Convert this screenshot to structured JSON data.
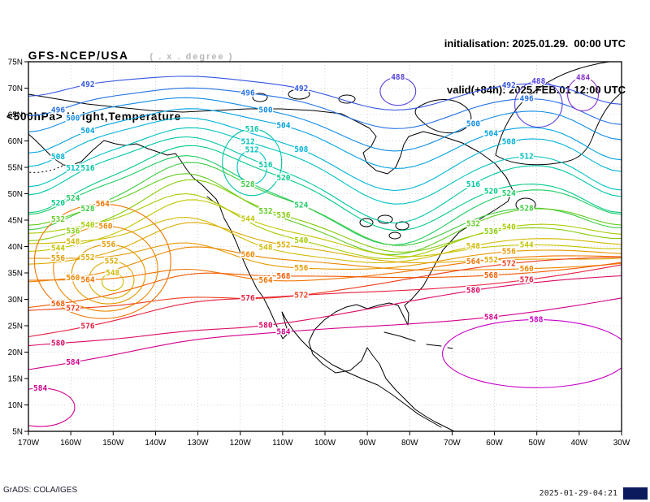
{
  "header": {
    "model": "GFS-NCEP/USA",
    "resolution_note": "( . x . degree )",
    "field_title": "<500hPa> Height,Temperature",
    "init_label": "initialisation: 2025.01.29.  00:00 UTC",
    "valid_label": "valid(+84h): 2025.FEB.01 12:00 UTC"
  },
  "footer": {
    "credit": "GrADS: COLA/IGES",
    "timestamp": "2025-01-29-04:21"
  },
  "axes": {
    "lat_ticks": [
      "75N",
      "70N",
      "65N",
      "60N",
      "55N",
      "50N",
      "45N",
      "40N",
      "35N",
      "30N",
      "25N",
      "20N",
      "15N",
      "10N",
      "5N"
    ],
    "lon_ticks": [
      "170W",
      "160W",
      "150W",
      "140W",
      "130W",
      "120W",
      "110W",
      "100W",
      "90W",
      "80W",
      "70W",
      "60W",
      "50W",
      "40W",
      "30W"
    ]
  },
  "chart_data": {
    "type": "contour",
    "title": "<500hPa> Height,Temperature",
    "model": "GFS-NCEP/USA",
    "initialisation": "2025.01.29. 00:00 UTC",
    "valid": "2025.FEB.01 12:00 UTC (+84h)",
    "lat_range": [
      "5N",
      "75N"
    ],
    "lon_range": [
      "170W",
      "30W"
    ],
    "contour_interval": 4,
    "levels": [
      {
        "value": 484,
        "color": "#8833cc"
      },
      {
        "value": 488,
        "color": "#5544dd"
      },
      {
        "value": 492,
        "color": "#3355e0"
      },
      {
        "value": 496,
        "color": "#2471e4"
      },
      {
        "value": 500,
        "color": "#118ce6"
      },
      {
        "value": 504,
        "color": "#02a2e2"
      },
      {
        "value": 508,
        "color": "#00b4d8"
      },
      {
        "value": 512,
        "color": "#00c2c2"
      },
      {
        "value": 516,
        "color": "#00c6a6"
      },
      {
        "value": 520,
        "color": "#00ca86"
      },
      {
        "value": 524,
        "color": "#1fcc62"
      },
      {
        "value": 528,
        "color": "#3fcc42"
      },
      {
        "value": 532,
        "color": "#63cc24"
      },
      {
        "value": 536,
        "color": "#85cc08"
      },
      {
        "value": 540,
        "color": "#a6cc00"
      },
      {
        "value": 544,
        "color": "#c2c600"
      },
      {
        "value": 548,
        "color": "#d2ba00"
      },
      {
        "value": 552,
        "color": "#dcaa00"
      },
      {
        "value": 556,
        "color": "#e59900"
      },
      {
        "value": 560,
        "color": "#ec8700"
      },
      {
        "value": 564,
        "color": "#f17300"
      },
      {
        "value": 568,
        "color": "#f25a00"
      },
      {
        "value": 572,
        "color": "#ee3d1a"
      },
      {
        "value": 576,
        "color": "#e62040"
      },
      {
        "value": 580,
        "color": "#dc0a64"
      },
      {
        "value": 584,
        "color": "#d2008e"
      },
      {
        "value": 588,
        "color": "#c800c8"
      }
    ],
    "closed_contours": [
      {
        "level": 488,
        "cx": 0.623,
        "cy": 0.08,
        "rx": 0.03,
        "ry": 0.038
      },
      {
        "level": 488,
        "cx": 0.86,
        "cy": 0.115,
        "rx": 0.04,
        "ry": 0.062
      },
      {
        "level": 484,
        "cx": 0.935,
        "cy": 0.088,
        "rx": 0.026,
        "ry": 0.045
      },
      {
        "level": 516,
        "cx": 0.377,
        "cy": 0.272,
        "rx": 0.05,
        "ry": 0.09
      },
      {
        "level": 512,
        "cx": 0.377,
        "cy": 0.285,
        "rx": 0.025,
        "ry": 0.046
      },
      {
        "level": 564,
        "cx": 0.125,
        "cy": 0.54,
        "rx": 0.115,
        "ry": 0.155
      },
      {
        "level": 560,
        "cx": 0.13,
        "cy": 0.56,
        "rx": 0.088,
        "ry": 0.115
      },
      {
        "level": 556,
        "cx": 0.135,
        "cy": 0.575,
        "rx": 0.062,
        "ry": 0.08
      },
      {
        "level": 552,
        "cx": 0.14,
        "cy": 0.59,
        "rx": 0.038,
        "ry": 0.05
      },
      {
        "level": 548,
        "cx": 0.142,
        "cy": 0.595,
        "rx": 0.018,
        "ry": 0.024
      },
      {
        "level": 584,
        "cx": 0.02,
        "cy": 0.935,
        "rx": 0.058,
        "ry": 0.052
      },
      {
        "level": 588,
        "cx": 0.856,
        "cy": 0.79,
        "rx": 0.158,
        "ry": 0.092
      }
    ]
  }
}
